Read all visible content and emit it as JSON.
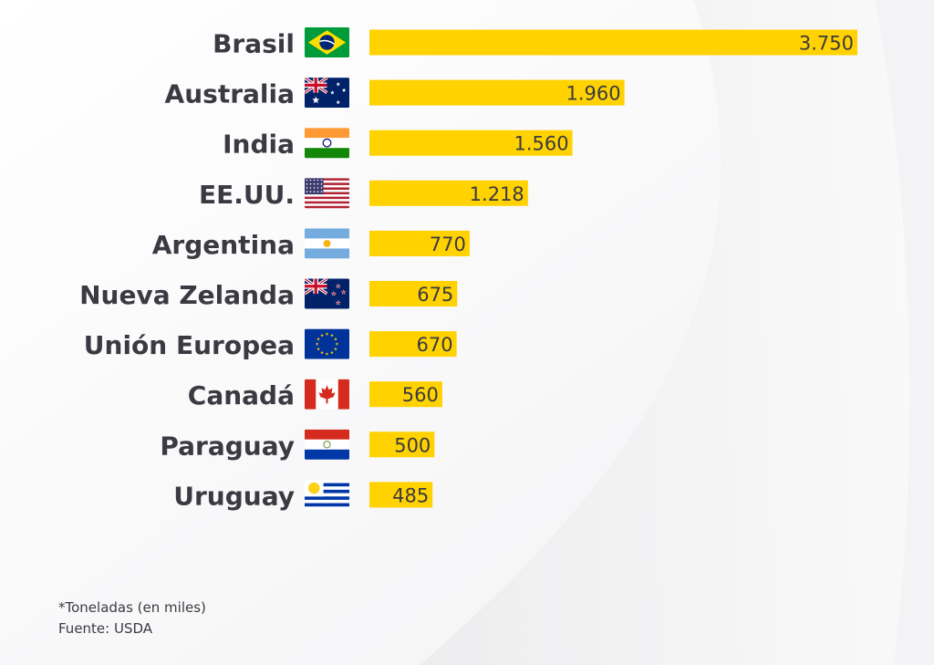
{
  "chart_data": {
    "type": "bar",
    "orientation": "horizontal",
    "categories": [
      "Brasil",
      "Australia",
      "India",
      "EE.UU.",
      "Argentina",
      "Nueva Zelanda",
      "Unión Europea",
      "Canadá",
      "Paraguay",
      "Uruguay"
    ],
    "value_labels": [
      "3.750",
      "1.960",
      "1.560",
      "1.218",
      "770",
      "675",
      "670",
      "560",
      "500",
      "485"
    ],
    "values": [
      3750,
      1960,
      1560,
      1218,
      770,
      675,
      670,
      560,
      500,
      485
    ],
    "flags": [
      "brazil-flag-icon",
      "australia-flag-icon",
      "india-flag-icon",
      "usa-flag-icon",
      "argentina-flag-icon",
      "new-zealand-flag-icon",
      "european-union-flag-icon",
      "canada-flag-icon",
      "paraguay-flag-icon",
      "uruguay-flag-icon"
    ],
    "bar_color": "#FFD200",
    "label_color": "#3A3A42",
    "value_text_color": "#3A3A42",
    "axes": "none",
    "grid": false,
    "legend": "none"
  },
  "footnote": {
    "units": "*Toneladas (en miles)",
    "source": "Fuente: USDA"
  }
}
